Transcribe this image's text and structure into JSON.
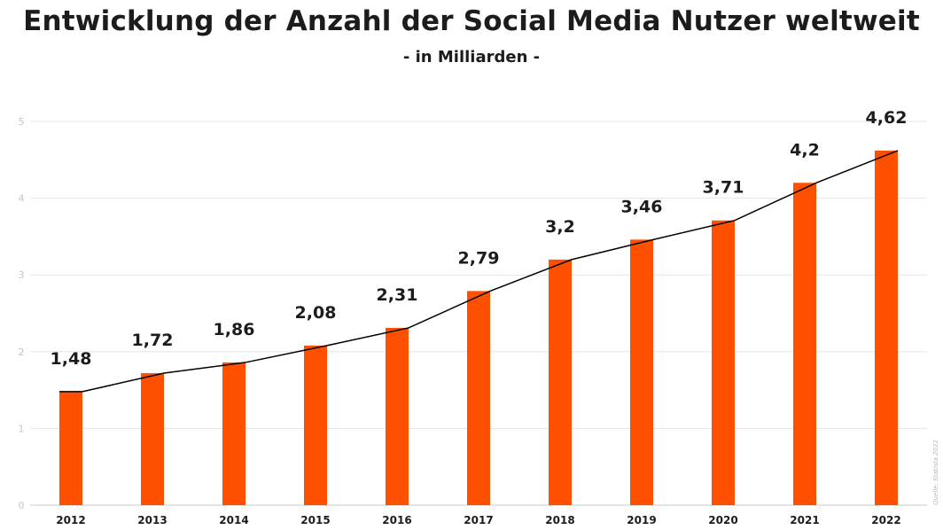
{
  "chart_data": {
    "type": "bar",
    "title": "Entwicklung der Anzahl der Social Media Nutzer weltweit",
    "subtitle": "- in Milliarden -",
    "source": "Quelle: Statista 2022",
    "categories": [
      "2012",
      "2013",
      "2014",
      "2015",
      "2016",
      "2017",
      "2018",
      "2019",
      "2020",
      "2021",
      "2022"
    ],
    "values": [
      1.48,
      1.72,
      1.86,
      2.08,
      2.31,
      2.79,
      3.2,
      3.46,
      3.71,
      4.2,
      4.62
    ],
    "value_labels": [
      "1,48",
      "1,72",
      "1,86",
      "2,08",
      "2,31",
      "2,79",
      "3,2",
      "3,46",
      "3,71",
      "4,2",
      "4,62"
    ],
    "yticks": [
      "0",
      "1",
      "2",
      "3",
      "4",
      "5"
    ],
    "ylim": [
      0,
      5
    ],
    "overlay": "line",
    "grid": true,
    "colors": {
      "bar": "#ff4f00",
      "line": "#000000"
    }
  }
}
